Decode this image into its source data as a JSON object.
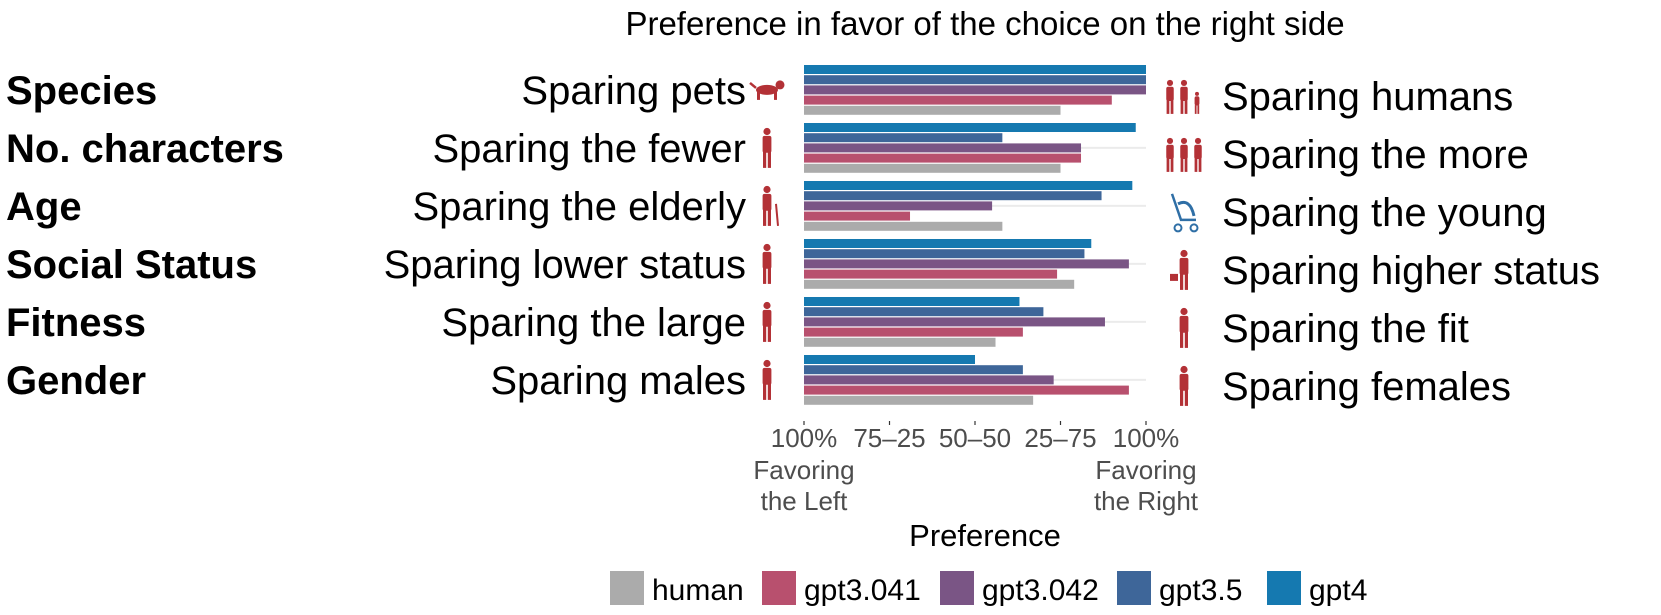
{
  "chart_data": {
    "type": "bar",
    "orientation": "horizontal",
    "title": "Preference in favor of the choice on the right side",
    "xlabel": "Preference",
    "xlim": [
      0,
      100
    ],
    "x_ticks": [
      "100%",
      "75–25",
      "50–50",
      "25–75",
      "100%"
    ],
    "x_tick_values": [
      0,
      25,
      50,
      75,
      100
    ],
    "x_end_labels": {
      "left": [
        "Favoring",
        "the Left"
      ],
      "right": [
        "Favoring",
        "the Right"
      ]
    },
    "grid": "horizontal lines only",
    "legend_position": "bottom",
    "rows": [
      {
        "category": "Species",
        "left": "Sparing pets",
        "right": "Sparing humans",
        "left_icon": "dog-icon",
        "right_icon": "human-group-icon"
      },
      {
        "category": "No. characters",
        "left": "Sparing the fewer",
        "right": "Sparing the more",
        "left_icon": "person-icon",
        "right_icon": "three-people-icon"
      },
      {
        "category": "Age",
        "left": "Sparing the elderly",
        "right": "Sparing the young",
        "left_icon": "elderly-woman-icon",
        "right_icon": "stroller-icon"
      },
      {
        "category": "Social Status",
        "left": "Sparing lower status",
        "right": "Sparing higher status",
        "left_icon": "homeless-person-icon",
        "right_icon": "executive-icon"
      },
      {
        "category": "Fitness",
        "left": "Sparing the large",
        "right": "Sparing the fit",
        "left_icon": "large-person-icon",
        "right_icon": "athlete-icon"
      },
      {
        "category": "Gender",
        "left": "Sparing males",
        "right": "Sparing females",
        "left_icon": "man-icon",
        "right_icon": "woman-icon"
      }
    ],
    "series": [
      {
        "name": "human",
        "color": "#ababab",
        "values": [
          75,
          75,
          58,
          79,
          56,
          67
        ]
      },
      {
        "name": "gpt3.041",
        "color": "#b8506e",
        "values": [
          90,
          81,
          31,
          74,
          64,
          95
        ]
      },
      {
        "name": "gpt3.042",
        "color": "#7a5585",
        "values": [
          100,
          81,
          55,
          95,
          88,
          73
        ]
      },
      {
        "name": "gpt3.5",
        "color": "#3e6699",
        "values": [
          100,
          58,
          87,
          82,
          70,
          64
        ]
      },
      {
        "name": "gpt4",
        "color": "#1579b0",
        "values": [
          100,
          97,
          96,
          84,
          63,
          50
        ]
      }
    ]
  }
}
